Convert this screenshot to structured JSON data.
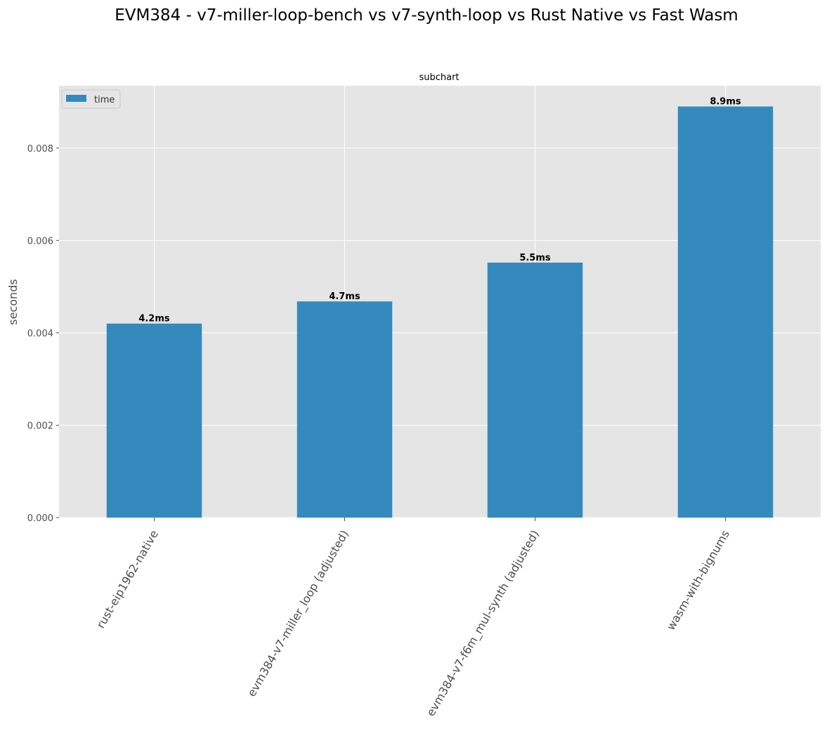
{
  "figure": {
    "title": "EVM384 - v7-miller-loop-bench vs v7-synth-loop vs Rust Native vs Fast Wasm"
  },
  "chart_data": {
    "type": "bar",
    "title": "subchart",
    "categories": [
      "rust-eip1962-native",
      "evm384-v7-miller_loop (adjusted)",
      "evm384-v7-f6m_mul-synth (adjusted)",
      "wasm-with-bignums"
    ],
    "series": [
      {
        "name": "time",
        "values": [
          0.0042,
          0.00468,
          0.00552,
          0.0089
        ],
        "data_labels": [
          "4.2ms",
          "4.7ms",
          "5.5ms",
          "8.9ms"
        ],
        "color": "#348abd"
      }
    ],
    "xlabel": "",
    "ylabel": "seconds",
    "ylim": [
      0,
      0.00935
    ],
    "yticks": [
      0.0,
      0.002,
      0.004,
      0.006,
      0.008
    ],
    "ytick_labels": [
      "0.000",
      "0.002",
      "0.004",
      "0.006",
      "0.008"
    ],
    "grid": true,
    "legend": "top-left",
    "background_color": "#e5e5e5",
    "grid_color": "#ffffff"
  }
}
